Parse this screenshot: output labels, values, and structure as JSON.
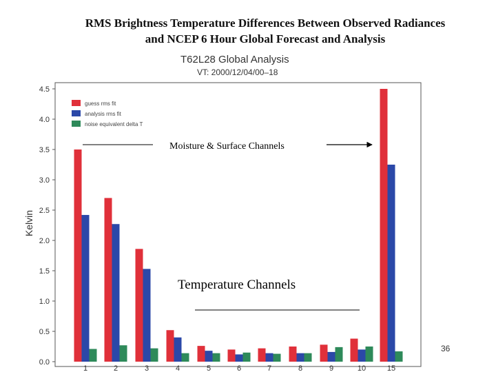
{
  "slide": {
    "title_line1": "RMS Brightness Temperature Differences Between Observed Radiances",
    "title_line2": "and NCEP 6 Hour Global Forecast and Analysis",
    "page_number": "36"
  },
  "chart_data": {
    "type": "bar",
    "title": "T62L28 Global Analysis",
    "subtitle": "VT:  2000/12/04/00–18",
    "xlabel": "",
    "ylabel": "Kelvin",
    "ylim": [
      0,
      4.5
    ],
    "yticks": [
      "0.0",
      "0.5",
      "1.0",
      "1.5",
      "2.0",
      "2.5",
      "3.0",
      "3.5",
      "4.0",
      "4.5"
    ],
    "categories": [
      "1",
      "2",
      "3",
      "4",
      "5",
      "6",
      "7",
      "8",
      "9",
      "10",
      "15"
    ],
    "series": [
      {
        "name": "guess rms fit",
        "color": "#e0303a",
        "values": [
          3.5,
          2.7,
          1.86,
          0.52,
          0.26,
          0.2,
          0.22,
          0.25,
          0.28,
          0.38,
          4.5
        ]
      },
      {
        "name": "analysis rms fit",
        "color": "#2b48a8",
        "values": [
          2.42,
          2.27,
          1.53,
          0.4,
          0.18,
          0.12,
          0.14,
          0.14,
          0.16,
          0.2,
          3.25
        ]
      },
      {
        "name": "noise equivalent delta T",
        "color": "#2e8a5a",
        "values": [
          0.21,
          0.27,
          0.22,
          0.14,
          0.14,
          0.15,
          0.13,
          0.14,
          0.24,
          0.25,
          0.17
        ]
      }
    ],
    "legend_position": "top-left",
    "grid": false,
    "annotations": {
      "moisture": "Moisture & Surface Channels",
      "temperature": "Temperature Channels"
    }
  }
}
